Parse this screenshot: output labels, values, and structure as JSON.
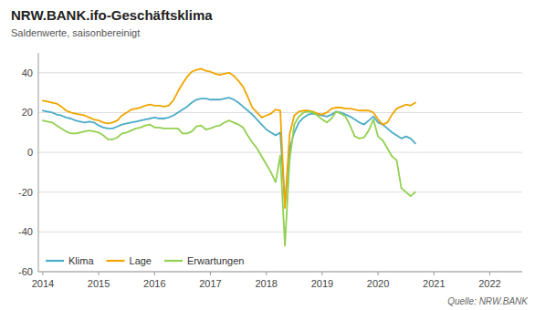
{
  "chart_data": {
    "type": "line",
    "title": "NRW.BANK.ifo-Geschäftsklima",
    "subtitle": "Saldenwerte, saisonbereinigt",
    "annotations": [
      "Quelle: NRW.BANK"
    ],
    "x": [
      2014.0,
      2014.0833333333333,
      2014.1666666666667,
      2014.25,
      2014.3333333333333,
      2014.4166666666667,
      2014.5,
      2014.5833333333333,
      2014.6666666666667,
      2014.75,
      2014.8333333333333,
      2014.9166666666667,
      2015.0,
      2015.0833333333333,
      2015.1666666666667,
      2015.25,
      2015.3333333333333,
      2015.4166666666667,
      2015.5,
      2015.5833333333333,
      2015.6666666666667,
      2015.75,
      2015.8333333333333,
      2015.9166666666667,
      2016.0,
      2016.0833333333333,
      2016.1666666666667,
      2016.25,
      2016.3333333333333,
      2016.4166666666667,
      2016.5,
      2016.5833333333333,
      2016.6666666666667,
      2016.75,
      2016.8333333333333,
      2016.9166666666667,
      2017.0,
      2017.0833333333333,
      2017.1666666666667,
      2017.25,
      2017.3333333333333,
      2017.4166666666667,
      2017.5,
      2017.5833333333333,
      2017.6666666666667,
      2017.75,
      2017.8333333333333,
      2017.9166666666667,
      2018.0,
      2018.0833333333333,
      2018.1666666666667,
      2018.25,
      2018.3333333333333,
      2018.4166666666667,
      2018.5,
      2018.5833333333333,
      2018.6666666666667,
      2018.75,
      2018.8333333333333,
      2018.9166666666667,
      2019.0,
      2019.0833333333333,
      2019.1666666666667,
      2019.25,
      2019.3333333333333,
      2019.4166666666667,
      2019.5,
      2019.5833333333333,
      2019.6666666666667,
      2019.75,
      2019.8333333333333,
      2019.9166666666667,
      2020.0,
      2020.0833333333333,
      2020.1666666666667,
      2020.25,
      2020.3333333333333,
      2020.4166666666667,
      2020.5,
      2020.5833333333333,
      2020.6666666666667
    ],
    "series": [
      {
        "name": "Klima",
        "color": "#4bacc6",
        "values": [
          21.0,
          20.5,
          20.0,
          19.0,
          18.5,
          17.5,
          17.0,
          16.0,
          15.5,
          15.0,
          15.5,
          15.0,
          13.5,
          12.5,
          12.0,
          12.0,
          13.0,
          14.0,
          14.5,
          15.0,
          15.5,
          16.0,
          16.5,
          17.0,
          17.5,
          17.0,
          17.0,
          17.5,
          18.5,
          20.0,
          21.5,
          23.0,
          25.0,
          26.5,
          27.0,
          27.0,
          26.5,
          26.5,
          26.5,
          27.0,
          27.5,
          26.5,
          25.0,
          23.0,
          21.0,
          19.0,
          16.5,
          14.0,
          11.5,
          10.0,
          8.5,
          10.0,
          -26.0,
          2.0,
          10.0,
          15.0,
          17.5,
          19.0,
          19.5,
          19.0,
          18.5,
          18.0,
          19.0,
          20.5,
          20.0,
          19.0,
          18.0,
          16.5,
          15.0,
          14.0,
          16.0,
          18.0,
          15.0,
          14.0,
          12.0,
          10.0,
          8.5,
          7.0,
          8.0,
          7.0,
          4.5
        ]
      },
      {
        "name": "Lage",
        "color": "#f0a500",
        "values": [
          26.0,
          25.5,
          25.0,
          24.5,
          23.0,
          21.0,
          20.0,
          19.5,
          19.0,
          18.5,
          17.5,
          16.5,
          16.0,
          15.0,
          14.5,
          15.0,
          16.0,
          18.5,
          20.0,
          21.5,
          22.0,
          22.5,
          23.5,
          24.0,
          23.5,
          23.5,
          23.0,
          23.5,
          26.0,
          30.5,
          34.5,
          38.0,
          40.5,
          41.5,
          42.0,
          41.0,
          40.5,
          39.5,
          39.0,
          39.5,
          40.0,
          38.5,
          36.0,
          33.0,
          28.0,
          22.5,
          20.0,
          17.5,
          18.5,
          19.5,
          21.5,
          21.0,
          -28.0,
          9.0,
          18.5,
          20.5,
          21.0,
          21.0,
          20.5,
          19.5,
          19.0,
          20.0,
          22.0,
          22.5,
          22.5,
          22.0,
          22.0,
          21.5,
          21.0,
          21.0,
          21.0,
          20.0,
          16.5,
          14.0,
          15.0,
          19.0,
          22.0,
          23.0,
          24.0,
          23.5,
          25.0
        ]
      },
      {
        "name": "Erwartungen",
        "color": "#92d050",
        "values": [
          16.0,
          15.5,
          15.0,
          13.5,
          12.0,
          10.5,
          9.5,
          9.5,
          10.0,
          10.5,
          11.0,
          10.5,
          10.0,
          8.5,
          6.5,
          6.5,
          7.5,
          9.5,
          10.0,
          11.0,
          12.0,
          12.5,
          13.5,
          14.0,
          12.5,
          12.5,
          12.0,
          12.0,
          12.0,
          12.0,
          9.5,
          9.5,
          10.5,
          13.0,
          13.5,
          11.5,
          12.0,
          13.0,
          13.5,
          15.0,
          16.0,
          15.0,
          14.0,
          12.5,
          8.5,
          5.0,
          2.0,
          -2.0,
          -6.0,
          -10.0,
          -15.0,
          -1.5,
          -47.0,
          -4.0,
          14.0,
          18.0,
          20.0,
          20.5,
          20.0,
          18.5,
          16.5,
          15.0,
          17.0,
          20.5,
          19.5,
          18.0,
          13.5,
          8.0,
          7.0,
          7.5,
          11.0,
          16.5,
          8.0,
          6.0,
          2.0,
          -2.0,
          -4.0,
          -18.0,
          -20.0,
          -22.0,
          -20.0
        ]
      }
    ],
    "xlim": [
      2013.92,
      2022.58
    ],
    "xticks": [
      2014,
      2015,
      2016,
      2017,
      2018,
      2019,
      2020,
      2021,
      2022
    ],
    "ylim": [
      -60,
      50
    ],
    "yticks": [
      -60,
      -40,
      -20,
      0,
      20,
      40
    ],
    "grid": true,
    "legend": "lower left"
  }
}
